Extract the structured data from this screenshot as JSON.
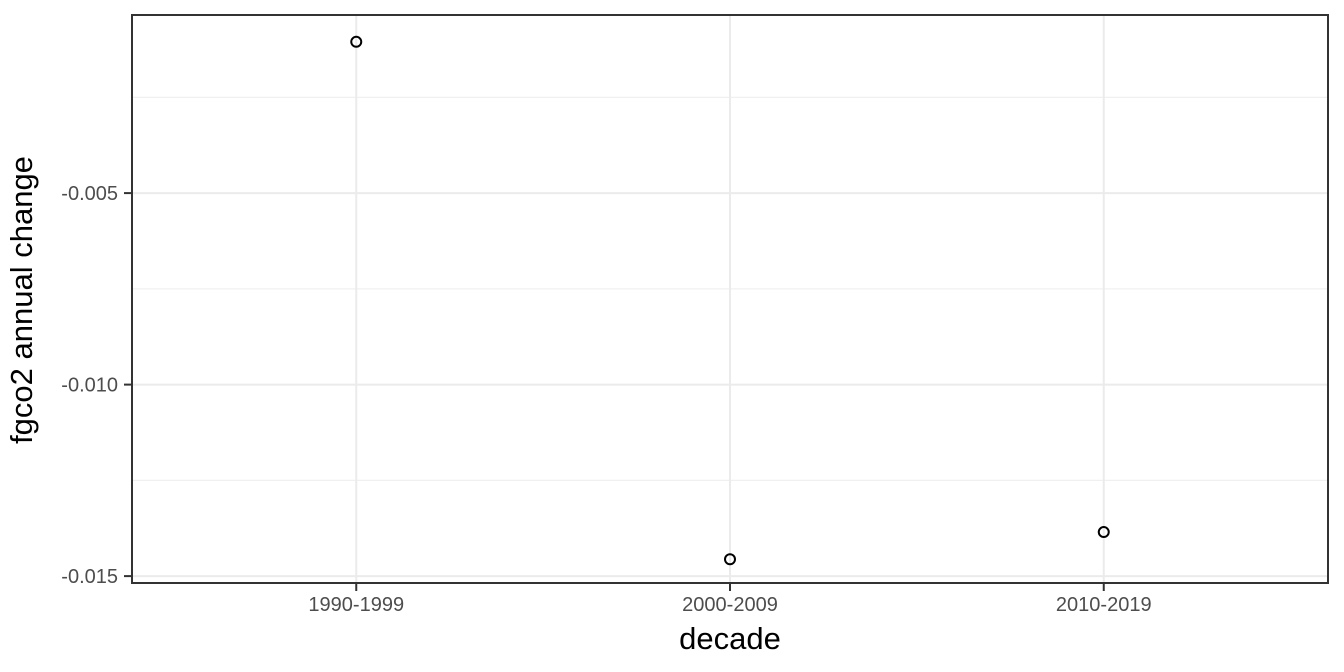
{
  "chart_data": {
    "type": "scatter",
    "title": "",
    "xlabel": "decade",
    "ylabel": "fgco2 annual change",
    "categories": [
      "1990-1999",
      "2000-2009",
      "2010-2019"
    ],
    "values": [
      -0.00105,
      -0.01456,
      -0.01385
    ],
    "series": [
      {
        "name": "fgco2 annual change",
        "values": [
          -0.00105,
          -0.01456,
          -0.01385
        ]
      }
    ],
    "y_ticks": [
      {
        "value": -0.005,
        "label": "-0.005"
      },
      {
        "value": -0.01,
        "label": "-0.010"
      },
      {
        "value": -0.015,
        "label": "-0.015"
      }
    ],
    "y_minor_ticks": [
      -0.0025,
      -0.0075,
      -0.0125
    ],
    "ylim": [
      -0.01518,
      -0.00035
    ],
    "grid": "major-and-minor",
    "legend_position": "none",
    "marker": "open-circle",
    "theme": {
      "background": "#FFFFFF",
      "panel_background": "#FFFFFF",
      "panel_border_color": "#333333",
      "grid_major_color": "#EBEBEB",
      "grid_minor_color": "#F0F0F0",
      "tick_mark_color": "#333333",
      "tick_label_color": "#4D4D4D",
      "axis_title_color": "#000000",
      "point_color": "#000000"
    }
  }
}
